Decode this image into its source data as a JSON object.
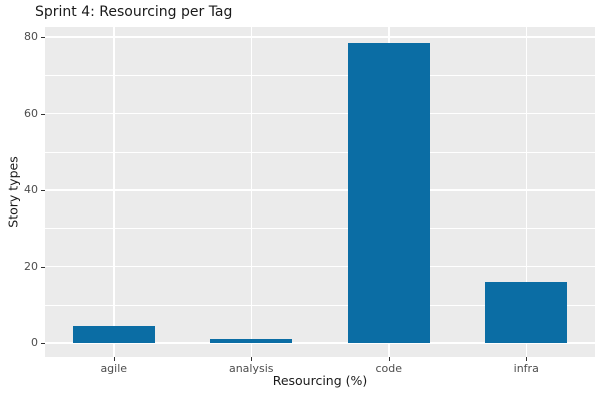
{
  "chart_data": {
    "type": "bar",
    "title": "Sprint 4: Resourcing per Tag",
    "xlabel": "Resourcing (%)",
    "ylabel": "Story types",
    "categories": [
      "agile",
      "analysis",
      "code",
      "infra"
    ],
    "values": [
      4.5,
      1,
      78.5,
      16
    ],
    "y_ticks": [
      0,
      20,
      40,
      60,
      80
    ],
    "y_minor_ticks": [
      10,
      30,
      50,
      70
    ],
    "ylim": [
      0,
      80
    ],
    "grid": "white major and minor horizontal lines plus vertical lines at category centers on gray panel",
    "legend": "none",
    "colors": {
      "bar": "#0b6da4",
      "panel": "#ebebeb",
      "grid": "#ffffff",
      "tick_text": "#4d4d4d",
      "tick_mark": "#333333",
      "text": "#1a1a1a"
    }
  }
}
